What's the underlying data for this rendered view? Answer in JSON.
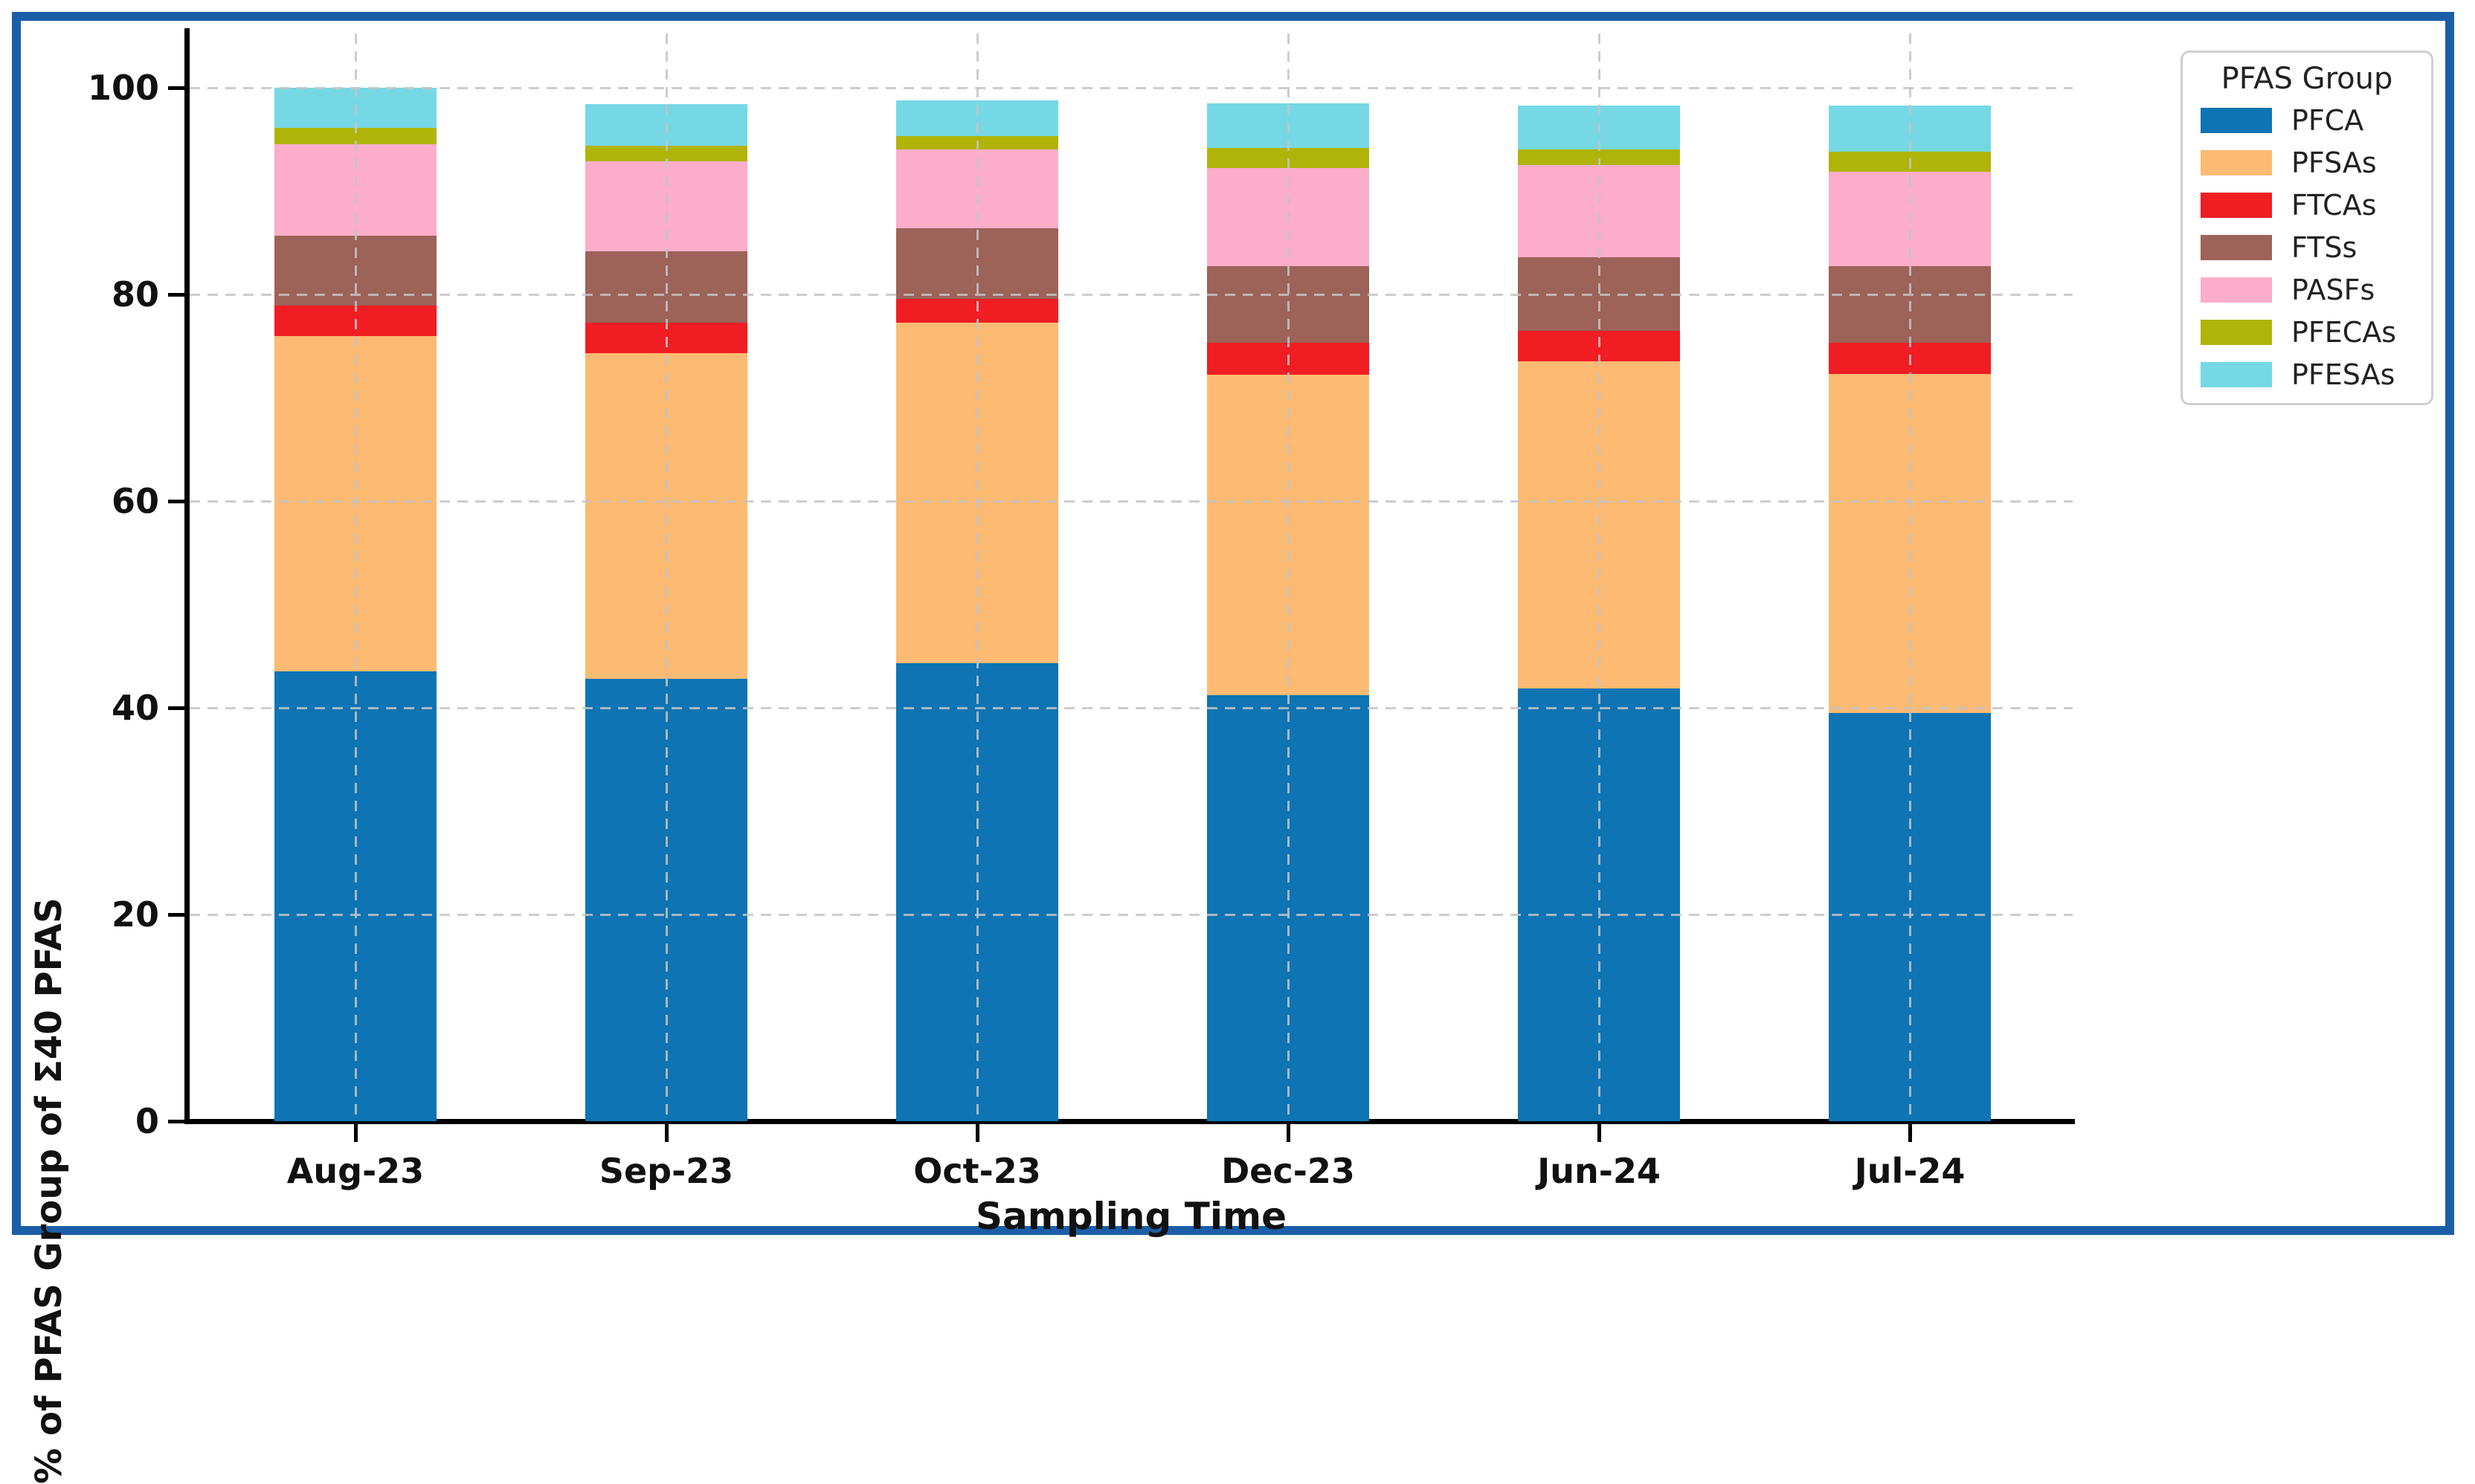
{
  "figure": {
    "border_color": "#1b5ea8",
    "background_color": "#ffffff",
    "grid_color": "#c4c4c4",
    "spine_color": "#000000"
  },
  "legend": {
    "title": "PFAS Group"
  },
  "chart_data": {
    "type": "bar",
    "stacked": true,
    "title": "",
    "xlabel": "Sampling Time",
    "ylabel": "% of PFAS Group of Σ40 PFAS",
    "ylim": [
      0,
      100
    ],
    "yticks": [
      0,
      20,
      40,
      60,
      80,
      100
    ],
    "grid": true,
    "grid_style": "dashed",
    "legend_position": "upper-right-outside",
    "legend_title": "PFAS Group",
    "categories": [
      "Aug-23",
      "Sep-23",
      "Oct-23",
      "Dec-23",
      "Jun-24",
      "Jul-24"
    ],
    "series": [
      {
        "name": "PFCA",
        "color": "#0e74b3",
        "values": [
          43.5,
          42.8,
          44.3,
          41.2,
          41.9,
          39.5
        ]
      },
      {
        "name": "PFSAs",
        "color": "#fcba72",
        "values": [
          32.5,
          31.5,
          33.0,
          31.0,
          31.6,
          32.8
        ]
      },
      {
        "name": "FTCAs",
        "color": "#f01d23",
        "values": [
          2.9,
          3.0,
          2.3,
          3.1,
          3.0,
          3.0
        ]
      },
      {
        "name": "FTSs",
        "color": "#9d6258",
        "values": [
          6.8,
          6.9,
          6.8,
          7.4,
          7.1,
          7.4
        ]
      },
      {
        "name": "PASFs",
        "color": "#fbadc9",
        "values": [
          8.8,
          8.7,
          7.6,
          9.5,
          8.9,
          9.2
        ]
      },
      {
        "name": "PFECAs",
        "color": "#b0b408",
        "values": [
          1.6,
          1.5,
          1.3,
          2.0,
          1.5,
          1.9
        ]
      },
      {
        "name": "PFESAs",
        "color": "#76d8e4",
        "values": [
          3.9,
          4.0,
          3.5,
          4.3,
          4.3,
          4.5
        ]
      }
    ],
    "stack_totals": [
      100.0,
      98.4,
      98.8,
      98.5,
      98.3,
      98.3
    ]
  }
}
